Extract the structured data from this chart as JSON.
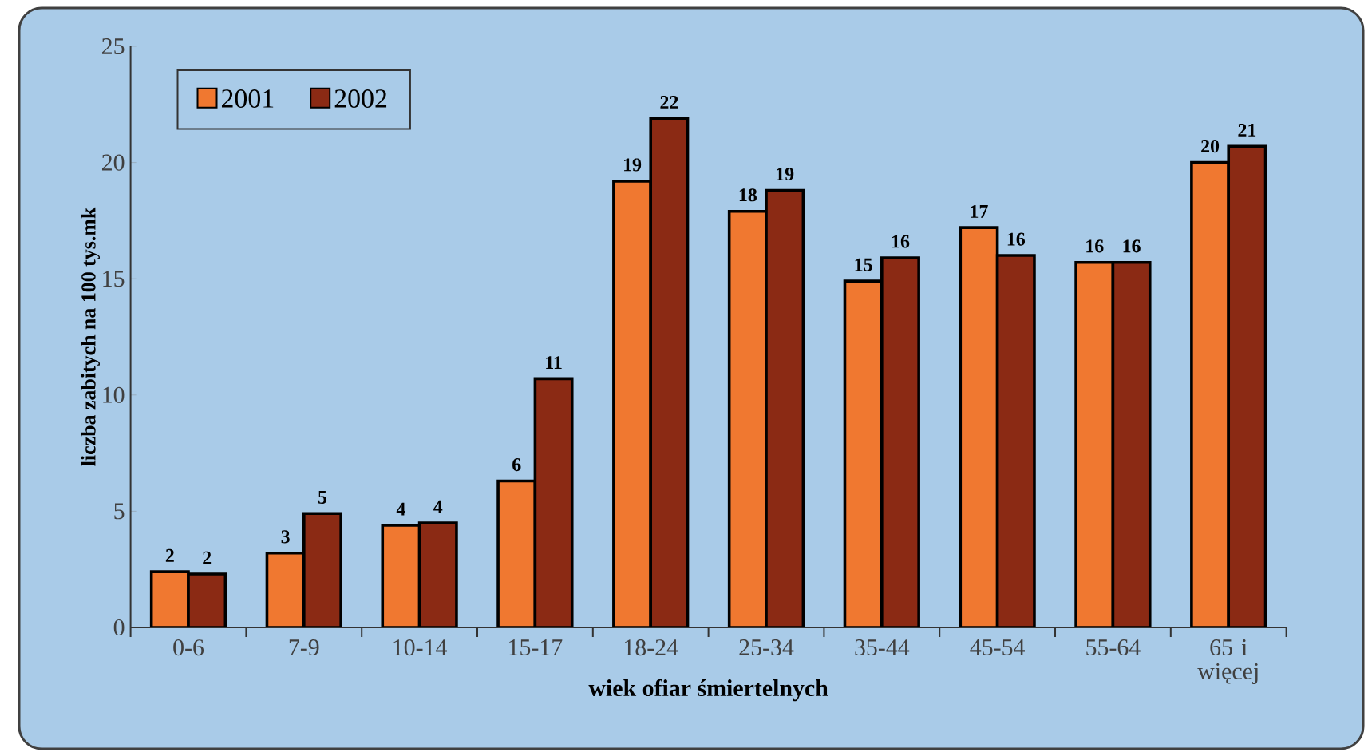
{
  "chart_data": {
    "type": "bar",
    "xlabel": "wiek ofiar śmiertelnych",
    "ylabel": "liczba zabitych na 100 tys.mk",
    "categories": [
      "0-6",
      "7-9",
      "10-14",
      "15-17",
      "18-24",
      "25-34",
      "35-44",
      "45-54",
      "55-64",
      "65 i więcej"
    ],
    "series": [
      {
        "name": "2001",
        "color": "#f07830",
        "values": [
          2.4,
          3.2,
          4.4,
          6.3,
          19.2,
          17.9,
          14.9,
          17.2,
          15.7,
          20.0
        ],
        "value_labels": [
          "2",
          "3",
          "4",
          "6",
          "19",
          "18",
          "15",
          "17",
          "16",
          "20"
        ]
      },
      {
        "name": "2002",
        "color": "#8b2a14",
        "values": [
          2.3,
          4.9,
          4.5,
          10.7,
          21.9,
          18.8,
          15.9,
          16.0,
          15.7,
          20.7
        ],
        "value_labels": [
          "2",
          "5",
          "4",
          "11",
          "22",
          "19",
          "16",
          "16",
          "16",
          "21"
        ]
      }
    ],
    "ylim": [
      0,
      25
    ],
    "yticks": [
      0,
      5,
      10,
      15,
      20,
      25
    ],
    "legend": "top left",
    "grid": false
  }
}
